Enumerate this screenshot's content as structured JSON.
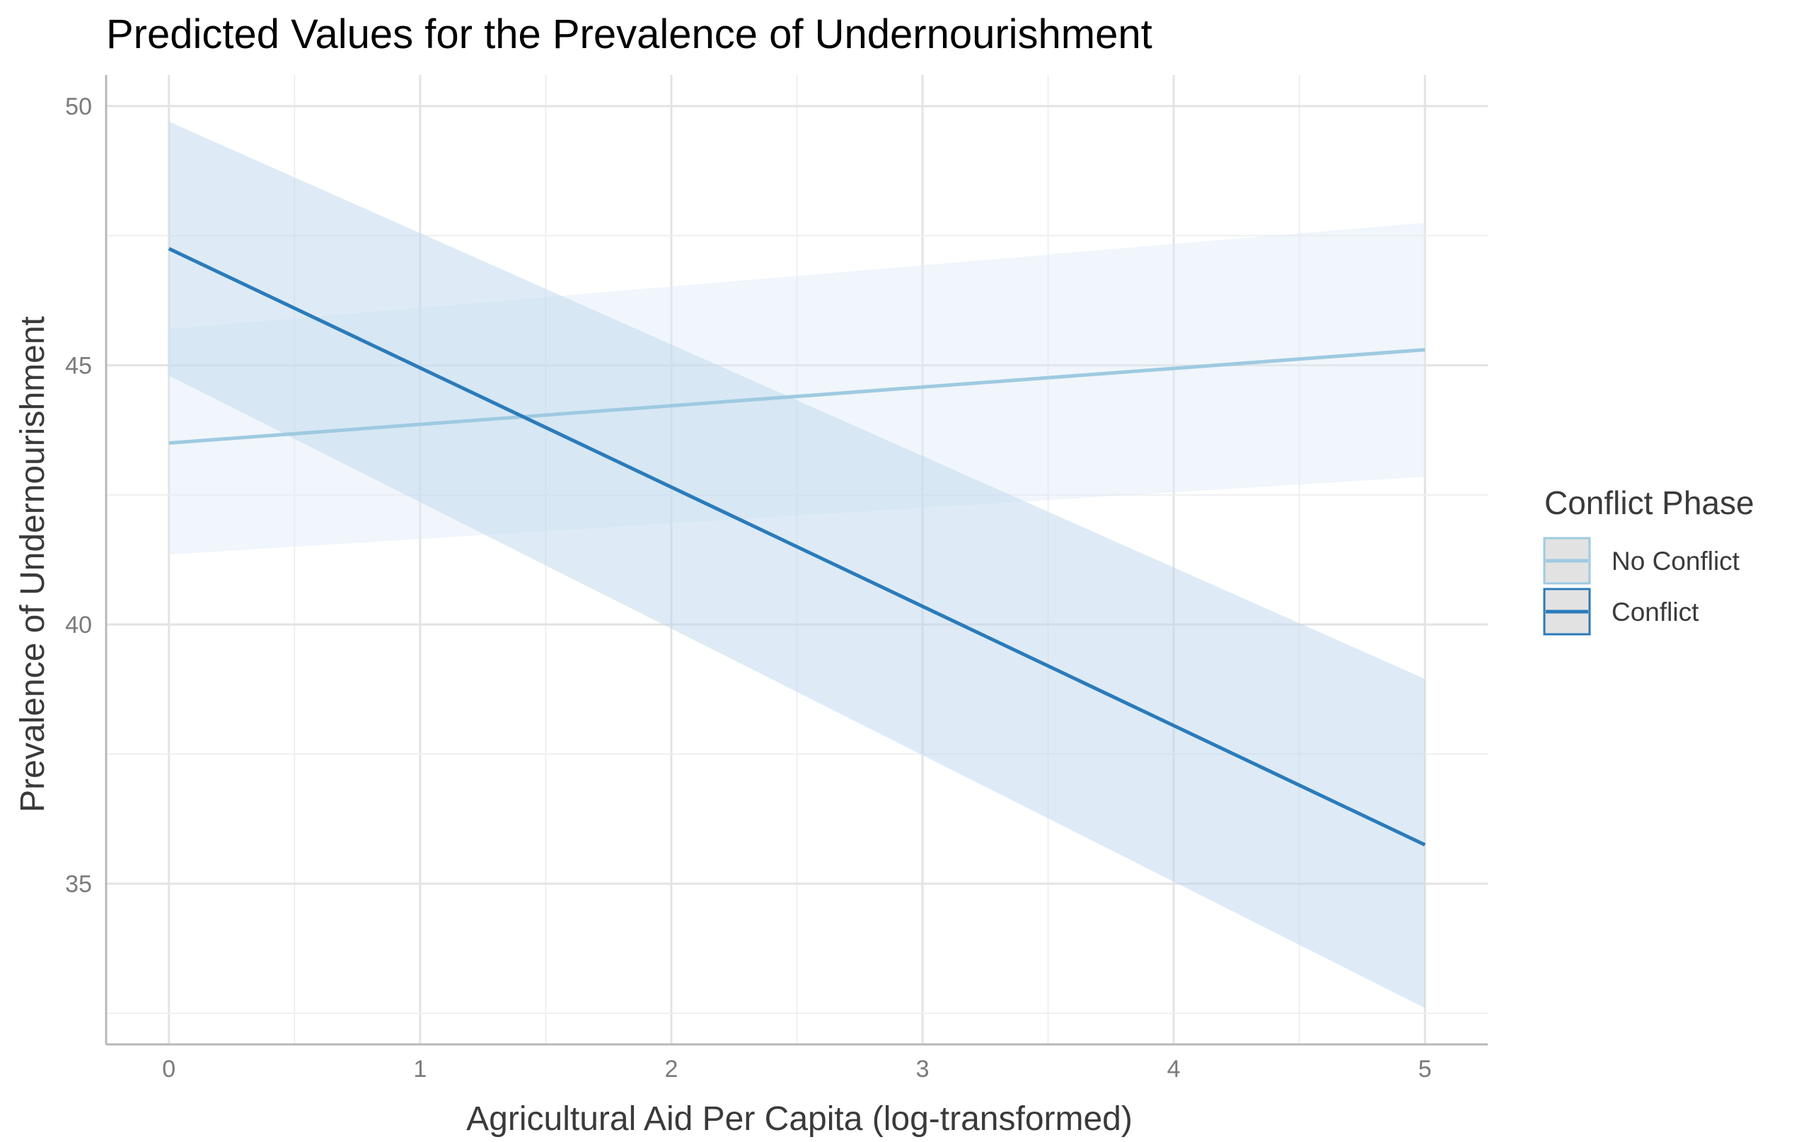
{
  "chart_data": {
    "type": "line",
    "title": "Predicted Values for the Prevalence of Undernourishment",
    "xlabel": "Agricultural Aid Per Capita (log-transformed)",
    "ylabel": "Prevalence of Undernourishment",
    "xlim": [
      -0.25,
      5.25
    ],
    "ylim": [
      31.9,
      50.6
    ],
    "x_ticks": [
      0,
      1,
      2,
      3,
      4,
      5
    ],
    "y_ticks": [
      35,
      40,
      45,
      50
    ],
    "grid": true,
    "legend": {
      "title": "Conflict Phase",
      "position": "right"
    },
    "series": [
      {
        "name": "No Conflict",
        "color": "#9ecae1",
        "x": [
          0,
          5
        ],
        "y": [
          43.5,
          45.3
        ],
        "ribbon": {
          "lower": [
            41.35,
            42.85
          ],
          "upper": [
            45.7,
            47.75
          ]
        },
        "ribbon_color": "#deebf7",
        "ribbon_opacity": 0.45
      },
      {
        "name": "Conflict",
        "color": "#2b7bba",
        "x": [
          0,
          5
        ],
        "y": [
          47.25,
          35.75
        ],
        "ribbon": {
          "lower": [
            44.8,
            32.6
          ],
          "upper": [
            49.7,
            38.95
          ]
        },
        "ribbon_color": "#bdd7ee",
        "ribbon_opacity": 0.5
      }
    ]
  }
}
